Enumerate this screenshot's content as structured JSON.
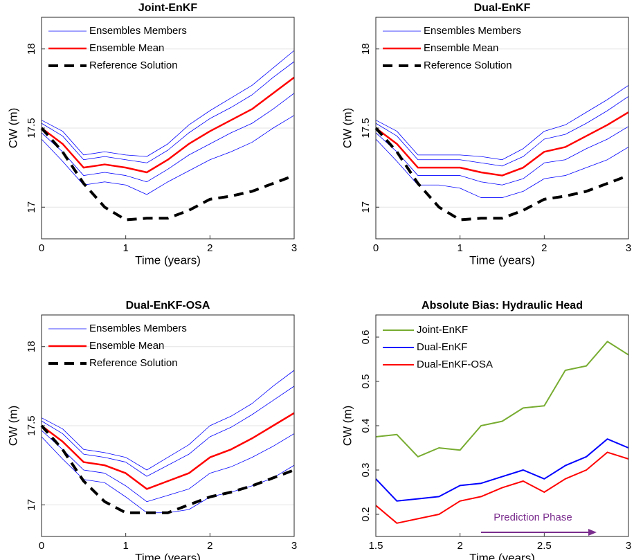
{
  "chart_data": [
    {
      "type": "line",
      "title": "Joint-EnKF",
      "x_label": "Time (years)",
      "y_label": "CW (m)",
      "x": [
        0,
        0.25,
        0.5,
        0.75,
        1,
        1.25,
        1.5,
        1.75,
        2,
        2.25,
        2.5,
        2.75,
        3
      ],
      "xlim": [
        0,
        3
      ],
      "xticks": [
        0,
        1,
        2,
        3
      ],
      "ylim": [
        16.8,
        18.2
      ],
      "yticks": [
        17,
        17.5,
        18
      ],
      "grid": true,
      "series": [
        {
          "name": "Ensembles Members",
          "color": "#0000ff",
          "linewidth": 0.8,
          "linestyle": "solid",
          "members": [
            [
              17.43,
              17.29,
              17.14,
              17.16,
              17.14,
              17.08,
              17.16,
              17.23,
              17.3,
              17.35,
              17.41,
              17.5,
              17.58
            ],
            [
              17.47,
              17.35,
              17.2,
              17.22,
              17.2,
              17.16,
              17.24,
              17.33,
              17.4,
              17.47,
              17.53,
              17.62,
              17.72
            ],
            [
              17.53,
              17.45,
              17.3,
              17.32,
              17.3,
              17.28,
              17.36,
              17.47,
              17.56,
              17.63,
              17.71,
              17.82,
              17.92
            ],
            [
              17.55,
              17.48,
              17.33,
              17.35,
              17.33,
              17.32,
              17.4,
              17.52,
              17.61,
              17.69,
              17.77,
              17.88,
              17.99
            ]
          ]
        },
        {
          "name": "Ensemble Mean",
          "color": "#ff0000",
          "linewidth": 2.5,
          "linestyle": "solid",
          "values": [
            17.5,
            17.4,
            17.25,
            17.27,
            17.25,
            17.22,
            17.3,
            17.4,
            17.48,
            17.55,
            17.62,
            17.72,
            17.82
          ]
        },
        {
          "name": "Reference Solution",
          "color": "#000000",
          "linewidth": 4,
          "linestyle": "dashed",
          "values": [
            17.5,
            17.35,
            17.15,
            17.0,
            16.92,
            16.93,
            16.93,
            16.98,
            17.05,
            17.07,
            17.1,
            17.15,
            17.2
          ]
        }
      ]
    },
    {
      "type": "line",
      "title": "Dual-EnKF",
      "x_label": "Time (years)",
      "y_label": "CW (m)",
      "x": [
        0,
        0.25,
        0.5,
        0.75,
        1,
        1.25,
        1.5,
        1.75,
        2,
        2.25,
        2.5,
        2.75,
        3
      ],
      "xlim": [
        0,
        3
      ],
      "xticks": [
        0,
        1,
        2,
        3
      ],
      "ylim": [
        16.8,
        18.2
      ],
      "yticks": [
        17,
        17.5,
        18
      ],
      "grid": true,
      "series": [
        {
          "name": "Ensembles Members",
          "color": "#0000ff",
          "linewidth": 0.8,
          "linestyle": "solid",
          "members": [
            [
              17.43,
              17.29,
              17.14,
              17.14,
              17.12,
              17.06,
              17.06,
              17.1,
              17.18,
              17.2,
              17.25,
              17.3,
              17.38
            ],
            [
              17.47,
              17.35,
              17.2,
              17.2,
              17.2,
              17.16,
              17.14,
              17.18,
              17.28,
              17.3,
              17.37,
              17.43,
              17.51
            ],
            [
              17.53,
              17.45,
              17.3,
              17.3,
              17.3,
              17.28,
              17.26,
              17.32,
              17.43,
              17.46,
              17.53,
              17.61,
              17.7
            ],
            [
              17.55,
              17.48,
              17.33,
              17.33,
              17.33,
              17.32,
              17.3,
              17.37,
              17.48,
              17.52,
              17.6,
              17.68,
              17.77
            ]
          ]
        },
        {
          "name": "Ensemble Mean",
          "color": "#ff0000",
          "linewidth": 2.5,
          "linestyle": "solid",
          "values": [
            17.5,
            17.4,
            17.25,
            17.25,
            17.25,
            17.22,
            17.2,
            17.25,
            17.35,
            17.38,
            17.45,
            17.52,
            17.6
          ]
        },
        {
          "name": "Reference Solution",
          "color": "#000000",
          "linewidth": 4,
          "linestyle": "dashed",
          "values": [
            17.5,
            17.35,
            17.15,
            17.0,
            16.92,
            16.93,
            16.93,
            16.98,
            17.05,
            17.07,
            17.1,
            17.15,
            17.2
          ]
        }
      ]
    },
    {
      "type": "line",
      "title": "Dual-EnKF-OSA",
      "x_label": "Time (years)",
      "y_label": "CW (m)",
      "x": [
        0,
        0.25,
        0.5,
        0.75,
        1,
        1.25,
        1.5,
        1.75,
        2,
        2.25,
        2.5,
        2.75,
        3
      ],
      "xlim": [
        0,
        3
      ],
      "xticks": [
        0,
        1,
        2,
        3
      ],
      "ylim": [
        16.8,
        18.2
      ],
      "yticks": [
        17,
        17.5,
        18
      ],
      "grid": true,
      "series": [
        {
          "name": "Ensembles Members",
          "color": "#0000ff",
          "linewidth": 0.8,
          "linestyle": "solid",
          "members": [
            [
              17.43,
              17.29,
              17.16,
              17.14,
              17.05,
              16.95,
              16.95,
              16.97,
              17.05,
              17.08,
              17.12,
              17.17,
              17.25
            ],
            [
              17.47,
              17.35,
              17.22,
              17.2,
              17.12,
              17.02,
              17.06,
              17.1,
              17.2,
              17.24,
              17.3,
              17.37,
              17.45
            ],
            [
              17.53,
              17.45,
              17.32,
              17.3,
              17.27,
              17.18,
              17.25,
              17.32,
              17.43,
              17.49,
              17.57,
              17.66,
              17.75
            ],
            [
              17.55,
              17.48,
              17.35,
              17.33,
              17.3,
              17.22,
              17.3,
              17.38,
              17.5,
              17.56,
              17.64,
              17.75,
              17.85
            ]
          ]
        },
        {
          "name": "Ensemble Mean",
          "color": "#ff0000",
          "linewidth": 2.5,
          "linestyle": "solid",
          "values": [
            17.5,
            17.4,
            17.27,
            17.25,
            17.2,
            17.1,
            17.15,
            17.2,
            17.3,
            17.35,
            17.42,
            17.5,
            17.58
          ]
        },
        {
          "name": "Reference Solution",
          "color": "#000000",
          "linewidth": 4,
          "linestyle": "dashed",
          "values": [
            17.5,
            17.35,
            17.15,
            17.02,
            16.95,
            16.95,
            16.95,
            17.0,
            17.05,
            17.08,
            17.12,
            17.17,
            17.22
          ]
        }
      ]
    },
    {
      "type": "line",
      "title": "Absolute Bias: Hydraulic Head",
      "x_label": "Time (years)",
      "y_label": "CW (m)",
      "annotation": "Prediction Phase",
      "annotation_color": "#7b2d8e",
      "x": [
        1.5,
        1.625,
        1.75,
        1.875,
        2,
        2.125,
        2.25,
        2.375,
        2.5,
        2.625,
        2.75,
        2.875,
        3
      ],
      "xlim": [
        1.5,
        3
      ],
      "xticks": [
        1.5,
        2,
        2.5,
        3
      ],
      "ylim": [
        0.15,
        0.65
      ],
      "yticks": [
        0.2,
        0.3,
        0.4,
        0.5,
        0.6
      ],
      "grid": false,
      "series": [
        {
          "name": "Joint-EnKF",
          "color": "#77ac30",
          "linewidth": 2,
          "linestyle": "solid",
          "values": [
            0.375,
            0.38,
            0.33,
            0.35,
            0.345,
            0.4,
            0.41,
            0.44,
            0.445,
            0.525,
            0.535,
            0.59,
            0.56
          ]
        },
        {
          "name": "Dual-EnKF",
          "color": "#0000ff",
          "linewidth": 2,
          "linestyle": "solid",
          "values": [
            0.28,
            0.23,
            0.235,
            0.24,
            0.265,
            0.27,
            0.285,
            0.3,
            0.28,
            0.31,
            0.33,
            0.37,
            0.35
          ]
        },
        {
          "name": "Dual-EnKF-OSA",
          "color": "#ff0000",
          "linewidth": 2,
          "linestyle": "solid",
          "values": [
            0.22,
            0.18,
            0.19,
            0.2,
            0.23,
            0.24,
            0.26,
            0.275,
            0.25,
            0.28,
            0.3,
            0.34,
            0.325
          ]
        }
      ]
    }
  ]
}
